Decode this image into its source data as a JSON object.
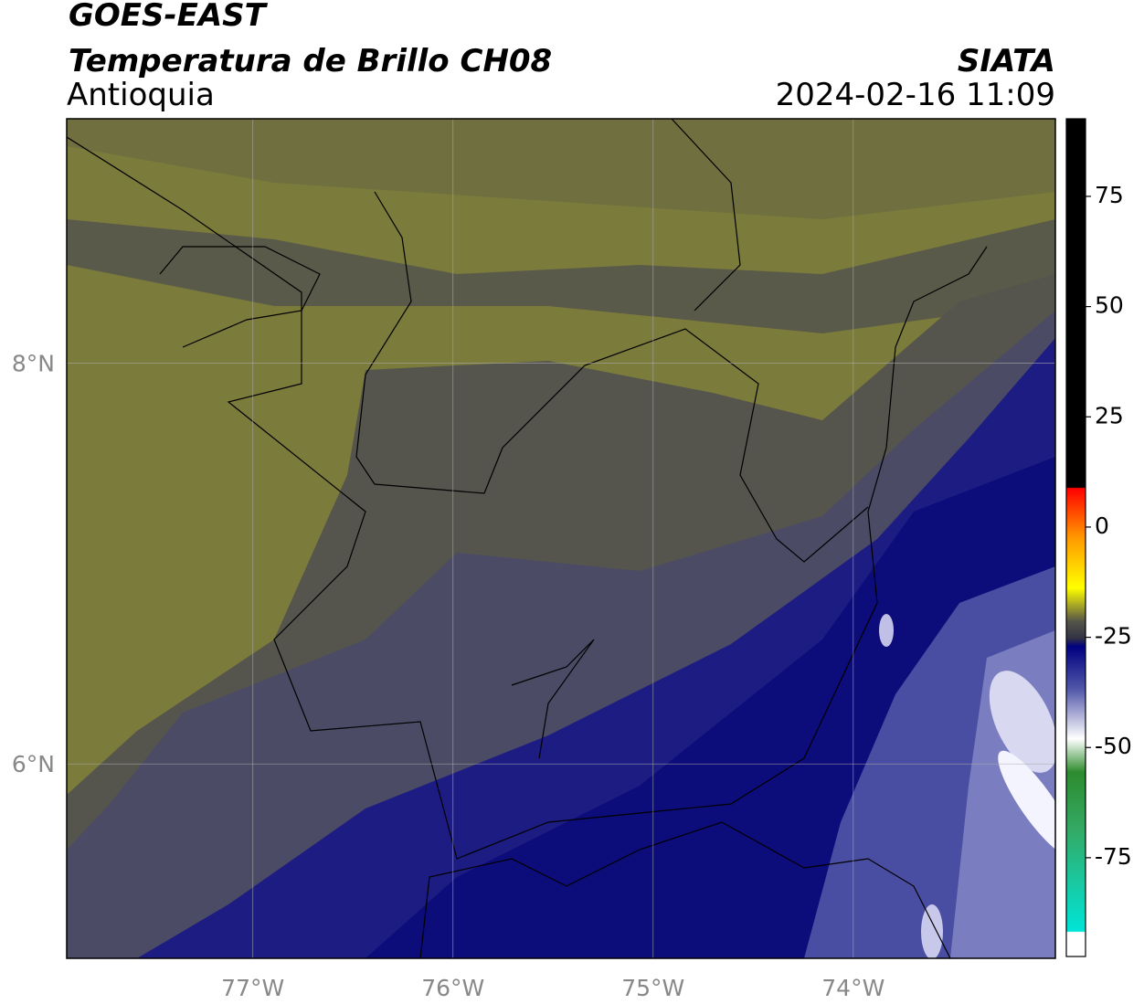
{
  "header": {
    "title": "GOES-EAST",
    "subtitle": "Temperatura de Brillo CH08",
    "region": "Antioquia",
    "source": "SIATA",
    "datetime": "2024-02-16 11:09"
  },
  "map": {
    "xlim": [
      -77.93,
      -72.99
    ],
    "ylim": [
      5.03,
      9.22
    ],
    "xticks": [
      {
        "value": -77,
        "label": "77°W"
      },
      {
        "value": -76,
        "label": "76°W"
      },
      {
        "value": -75,
        "label": "75°W"
      },
      {
        "value": -74,
        "label": "74°W"
      }
    ],
    "yticks": [
      {
        "value": 6,
        "label": "6°N"
      },
      {
        "value": 8,
        "label": "8°N"
      }
    ],
    "grid": true
  },
  "colorbar": {
    "lim": [
      -97.4,
      92.6
    ],
    "ticks": [
      75,
      50,
      25,
      0,
      -25,
      -50,
      -75
    ]
  }
}
